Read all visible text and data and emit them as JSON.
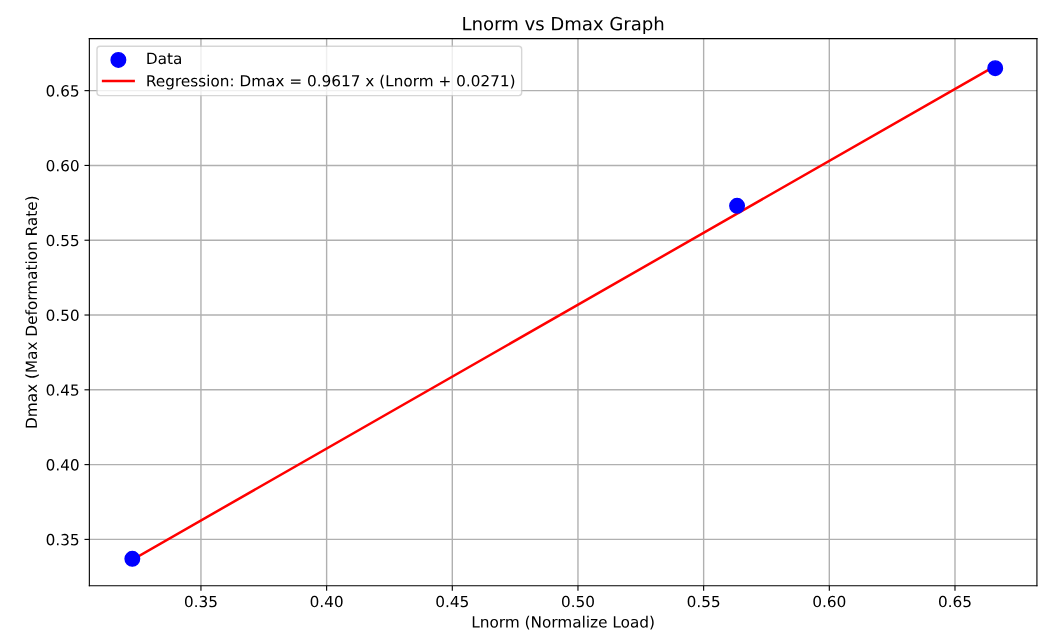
{
  "chart_data": {
    "type": "scatter",
    "title": "Lnorm vs Dmax Graph",
    "xlabel": "Lnorm (Normalize Load)",
    "ylabel": "Dmax (Max Deformation Rate)",
    "series": [
      {
        "name": "Data",
        "color": "#0000ff",
        "marker": "circle",
        "x": [
          0.3227,
          0.5633,
          0.666
        ],
        "values": [
          0.337,
          0.573,
          0.665
        ]
      },
      {
        "name": "Regression: Dmax = 0.9617 x (Lnorm + 0.0271)",
        "type": "line",
        "color": "#ff0000",
        "marker": "none",
        "line_style": "solid",
        "x": [
          0.3227,
          0.666
        ],
        "values": [
          0.3364,
          0.6665
        ]
      }
    ],
    "xlim": [
      0.3056,
      0.6826
    ],
    "ylim": [
      0.319,
      0.6848
    ],
    "xticks": [
      0.35,
      {
        "value": 0.4,
        "label": "0.40"
      },
      0.45,
      {
        "value": 0.5,
        "label": "0.50"
      },
      0.55,
      {
        "value": 0.6,
        "label": "0.60"
      },
      0.65
    ],
    "yticks": [
      0.35,
      {
        "value": 0.4,
        "label": "0.40"
      },
      0.45,
      {
        "value": 0.5,
        "label": "0.50"
      },
      0.55,
      {
        "value": 0.6,
        "label": "0.60"
      },
      0.65
    ],
    "grid": true,
    "legend": "top left"
  }
}
